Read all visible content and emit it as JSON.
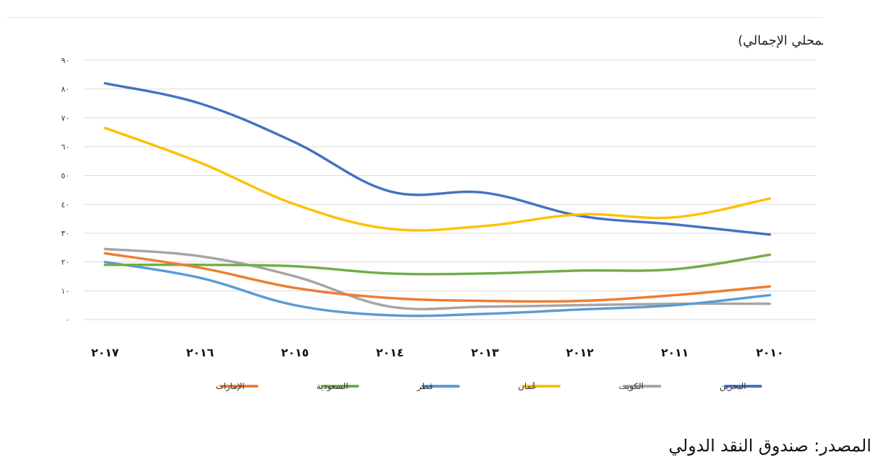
{
  "chart_data": {
    "type": "line",
    "title": "إجمالي الدين الحكومي (نسبة مئوية من الناتج المحلي الإجمالي)",
    "xlabel": "",
    "ylabel": "",
    "x": [
      "٢٠١٧",
      "٢٠١٦",
      "٢٠١٥",
      "٢٠١٤",
      "٢٠١٣",
      "٢٠١٢",
      "٢٠١١",
      "٢٠١٠"
    ],
    "yticks": [
      "٠",
      "١٠",
      "٢٠",
      "٣٠",
      "٤٠",
      "٥٠",
      "٦٠",
      "٧٠",
      "٨٠",
      "٩٠"
    ],
    "ylim": [
      0,
      90
    ],
    "grid": true,
    "legend_position": "bottom",
    "series": [
      {
        "name": "البحرين",
        "color": "#4472c4",
        "values": [
          82,
          75,
          61.5,
          44.5,
          44,
          36,
          33,
          29.5
        ]
      },
      {
        "name": "الكويت",
        "color": "#a5a5a5",
        "values": [
          24.5,
          22,
          15,
          4.5,
          4.5,
          5,
          5.5,
          5.5
        ]
      },
      {
        "name": "عُمان",
        "color": "#ffc000",
        "values": [
          66.5,
          54.5,
          40,
          31.5,
          32.5,
          36.5,
          35.5,
          42
        ]
      },
      {
        "name": "قطر",
        "color": "#5b9bd5",
        "values": [
          20,
          14.5,
          5,
          1.5,
          2,
          3.5,
          5,
          8.5
        ]
      },
      {
        "name": "السعودية",
        "color": "#70ad47",
        "values": [
          19,
          19,
          18.5,
          16,
          16,
          17,
          17.5,
          22.5
        ]
      },
      {
        "name": "الإمارات",
        "color": "#ed7d31",
        "values": [
          23,
          18,
          11,
          7.5,
          6.5,
          6.5,
          8.5,
          11.5
        ]
      }
    ],
    "legend_order": [
      "البحرين",
      "الكويت",
      "عُمان",
      "قطر",
      "السعودية",
      "الإمارات"
    ]
  },
  "footer": {
    "source": "المصدر: صندوق النقد الدولي"
  }
}
